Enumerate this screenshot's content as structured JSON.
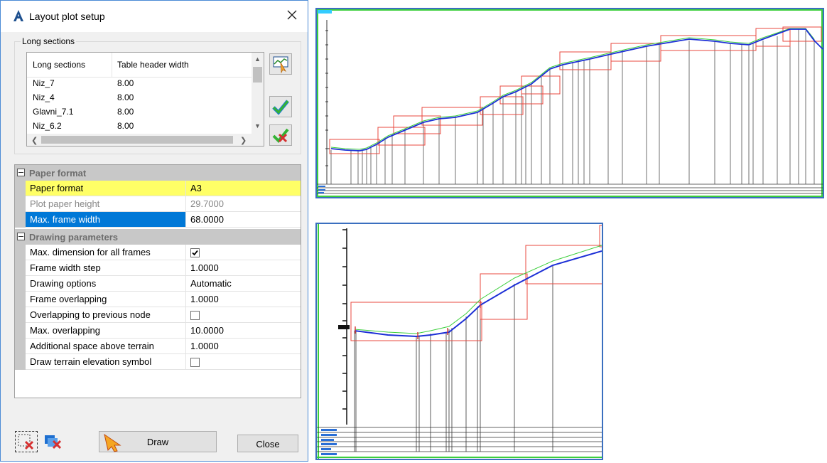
{
  "dialog": {
    "title": "Layout plot setup",
    "long_sections_group": "Long sections",
    "list_headers": [
      "Long sections",
      "Table header width"
    ],
    "list_rows": [
      {
        "name": "Niz_7",
        "width": "8.00"
      },
      {
        "name": "Niz_4",
        "width": "8.00"
      },
      {
        "name": "Glavni_7.1",
        "width": "8.00"
      },
      {
        "name": "Niz_6.2",
        "width": "8.00"
      }
    ],
    "categories": {
      "paper_format": "Paper format",
      "drawing_parameters": "Drawing parameters"
    },
    "properties": {
      "paper_format": {
        "name": "Paper format",
        "value": "A3"
      },
      "plot_paper_height": {
        "name": "Plot paper height",
        "value": "29.7000"
      },
      "max_frame_width": {
        "name": "Max. frame width",
        "value": "68.0000"
      },
      "max_dimension_all_frames": {
        "name": "Max. dimension for all frames",
        "checked": true
      },
      "frame_width_step": {
        "name": "Frame width step",
        "value": "1.0000"
      },
      "drawing_options": {
        "name": "Drawing options",
        "value": "Automatic"
      },
      "frame_overlapping": {
        "name": "Frame overlapping",
        "value": "1.0000"
      },
      "overlap_previous_node": {
        "name": "Overlapping to previous node",
        "checked": false
      },
      "max_overlapping": {
        "name": "Max. overlapping",
        "value": "10.0000"
      },
      "additional_space": {
        "name": "Additional space above terrain",
        "value": "1.0000"
      },
      "draw_terrain_symbol": {
        "name": "Draw terrain elevation symbol",
        "checked": false
      }
    },
    "buttons": {
      "draw": "Draw",
      "close": "Close"
    },
    "icons": {
      "app": "autocad-a-icon",
      "close": "close-icon",
      "pick": "pick-profile-icon",
      "select_all": "check-all-icon",
      "deselect_all": "uncheck-all-icon",
      "delete_frame": "delete-frame-icon",
      "delete_all": "delete-all-frames-icon",
      "draw": "draw-arrow-icon"
    }
  },
  "colors": {
    "accent": "#0078d7",
    "highlight": "#ffff66",
    "frame": "#e8483f",
    "profile": "#1c2fd6",
    "terrain": "#3ccf3c",
    "border": "#3a6fbf"
  }
}
